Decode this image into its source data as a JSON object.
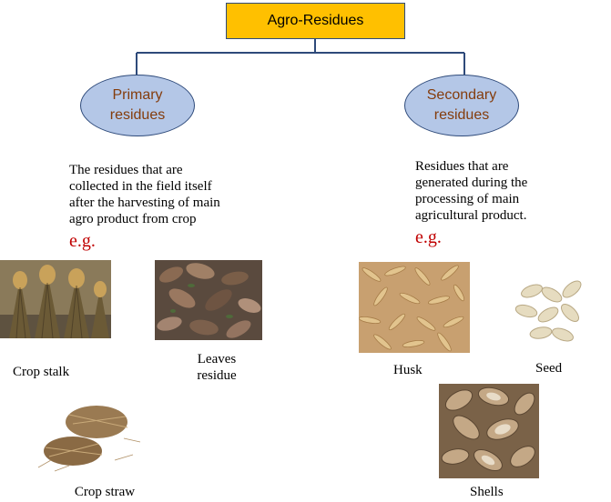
{
  "root": {
    "label": "Agro-Residues"
  },
  "primary": {
    "title_line1": "Primary",
    "title_line2": "residues",
    "desc_lines": [
      "The residues that are",
      "collected in the field itself",
      "after the harvesting of main",
      "agro product from crop"
    ],
    "eg": "e.g.",
    "examples": [
      {
        "label": "Crop stalk"
      },
      {
        "label_line1": "Leaves",
        "label_line2": "residue"
      },
      {
        "label": "Crop straw"
      }
    ]
  },
  "secondary": {
    "title_line1": "Secondary",
    "title_line2": "residues",
    "desc_lines": [
      "Residues that are",
      "generated during the",
      "processing of main",
      "agricultural product."
    ],
    "eg": "e.g.",
    "examples": [
      {
        "label": "Husk"
      },
      {
        "label": "Seed"
      },
      {
        "label": "Shells"
      }
    ]
  },
  "colors": {
    "root_fill": "#ffc000",
    "node_fill": "#b4c7e7",
    "connector": "#2e4a7a",
    "node_text": "#843c0c",
    "eg_text": "#c00000"
  }
}
